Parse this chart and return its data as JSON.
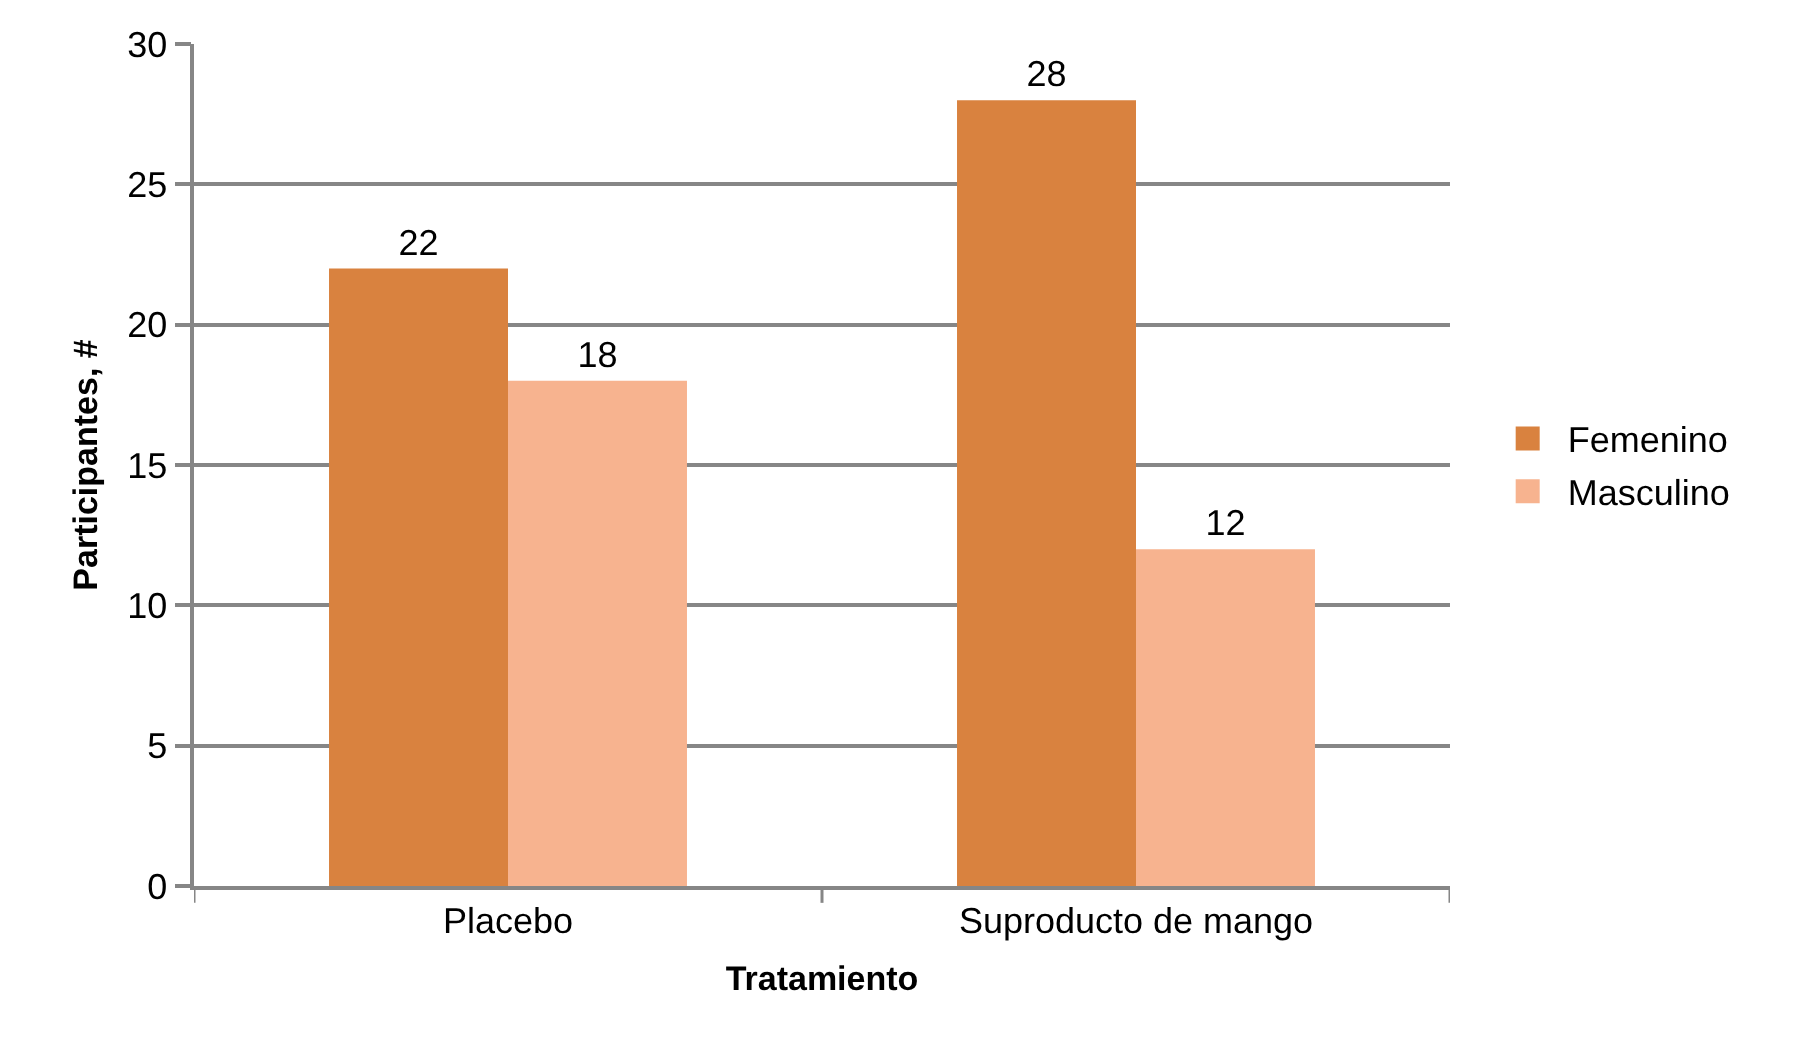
{
  "chart_data": {
    "type": "bar",
    "xlabel": "Tratamiento",
    "ylabel": "Participantes, #",
    "categories": [
      "Placebo",
      "Suproducto de mango"
    ],
    "series": [
      {
        "name": "Femenino",
        "color": "#d9823f",
        "values": [
          22,
          28
        ]
      },
      {
        "name": "Masculino",
        "color": "#f7b38f",
        "values": [
          18,
          12
        ]
      }
    ],
    "ylim": [
      0,
      30
    ],
    "yticks": [
      0,
      5,
      10,
      15,
      20,
      25,
      30
    ],
    "grid": "y",
    "legend": "right",
    "data_labels": true
  }
}
